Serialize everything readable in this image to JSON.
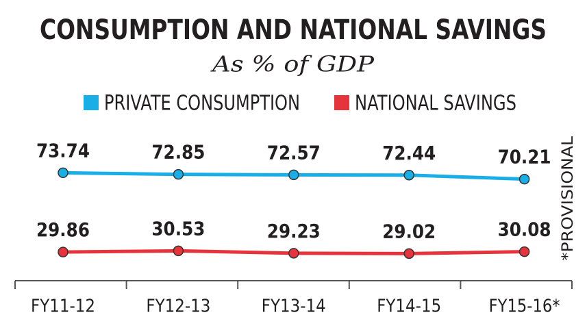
{
  "chart_data": {
    "type": "line",
    "title": "CONSUMPTION AND NATIONAL SAVINGS",
    "subtitle": "As % of GDP",
    "categories": [
      "FY11-12",
      "FY12-13",
      "FY13-14",
      "FY14-15",
      "FY15-16*"
    ],
    "series": [
      {
        "name": "PRIVATE CONSUMPTION",
        "color": "#1aaee6",
        "values": [
          73.74,
          72.85,
          72.57,
          72.44,
          70.21
        ]
      },
      {
        "name": "NATIONAL SAVINGS",
        "color": "#e5343b",
        "values": [
          29.86,
          30.53,
          29.23,
          29.02,
          30.08
        ]
      }
    ],
    "ylim": [
      0,
      100
    ],
    "footnote": "*PROVISIONAL"
  }
}
